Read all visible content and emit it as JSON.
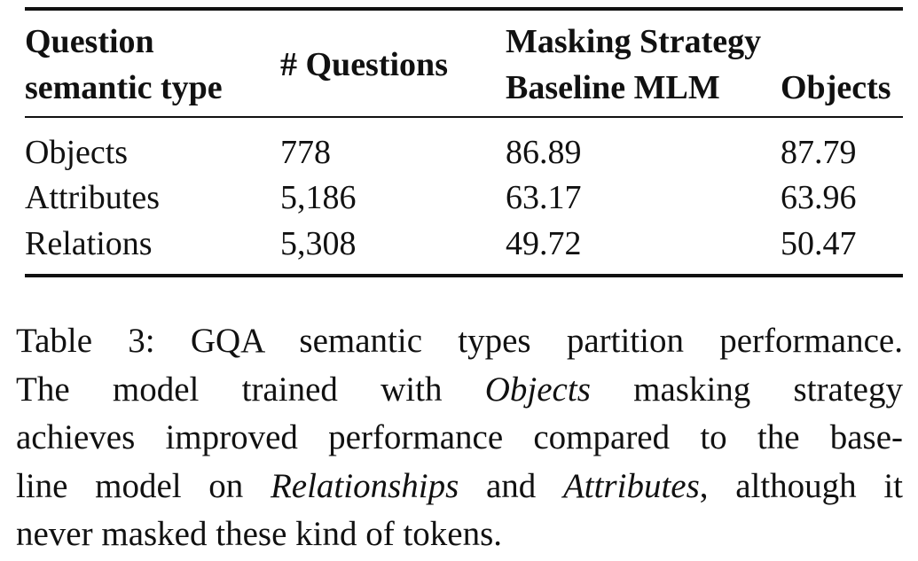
{
  "table": {
    "headers": {
      "question_type_line1": "Question",
      "question_type_line2": "semantic type",
      "num_questions": "# Questions",
      "masking_strategy": "Masking Strategy",
      "baseline": "Baseline MLM",
      "objects": "Objects"
    },
    "rows": [
      {
        "type": "Objects",
        "count": "778",
        "baseline": "86.89",
        "objects": "87.79"
      },
      {
        "type": "Attributes",
        "count": "5,186",
        "baseline": "63.17",
        "objects": "63.96"
      },
      {
        "type": "Relations",
        "count": "5,308",
        "baseline": "49.72",
        "objects": "50.47"
      }
    ]
  },
  "caption": {
    "l1": "Table 3: GQA semantic types partition performance.",
    "l2a": "The model trained with ",
    "l2b": "Objects",
    "l2c": " masking strategy",
    "l3": "achieves improved performance compared to the base-",
    "l4a": "line model on ",
    "l4b": "Relationships",
    "l4c": " and ",
    "l4d": "Attributes",
    "l4e": ", although it",
    "l5": "never masked these kind of tokens."
  }
}
